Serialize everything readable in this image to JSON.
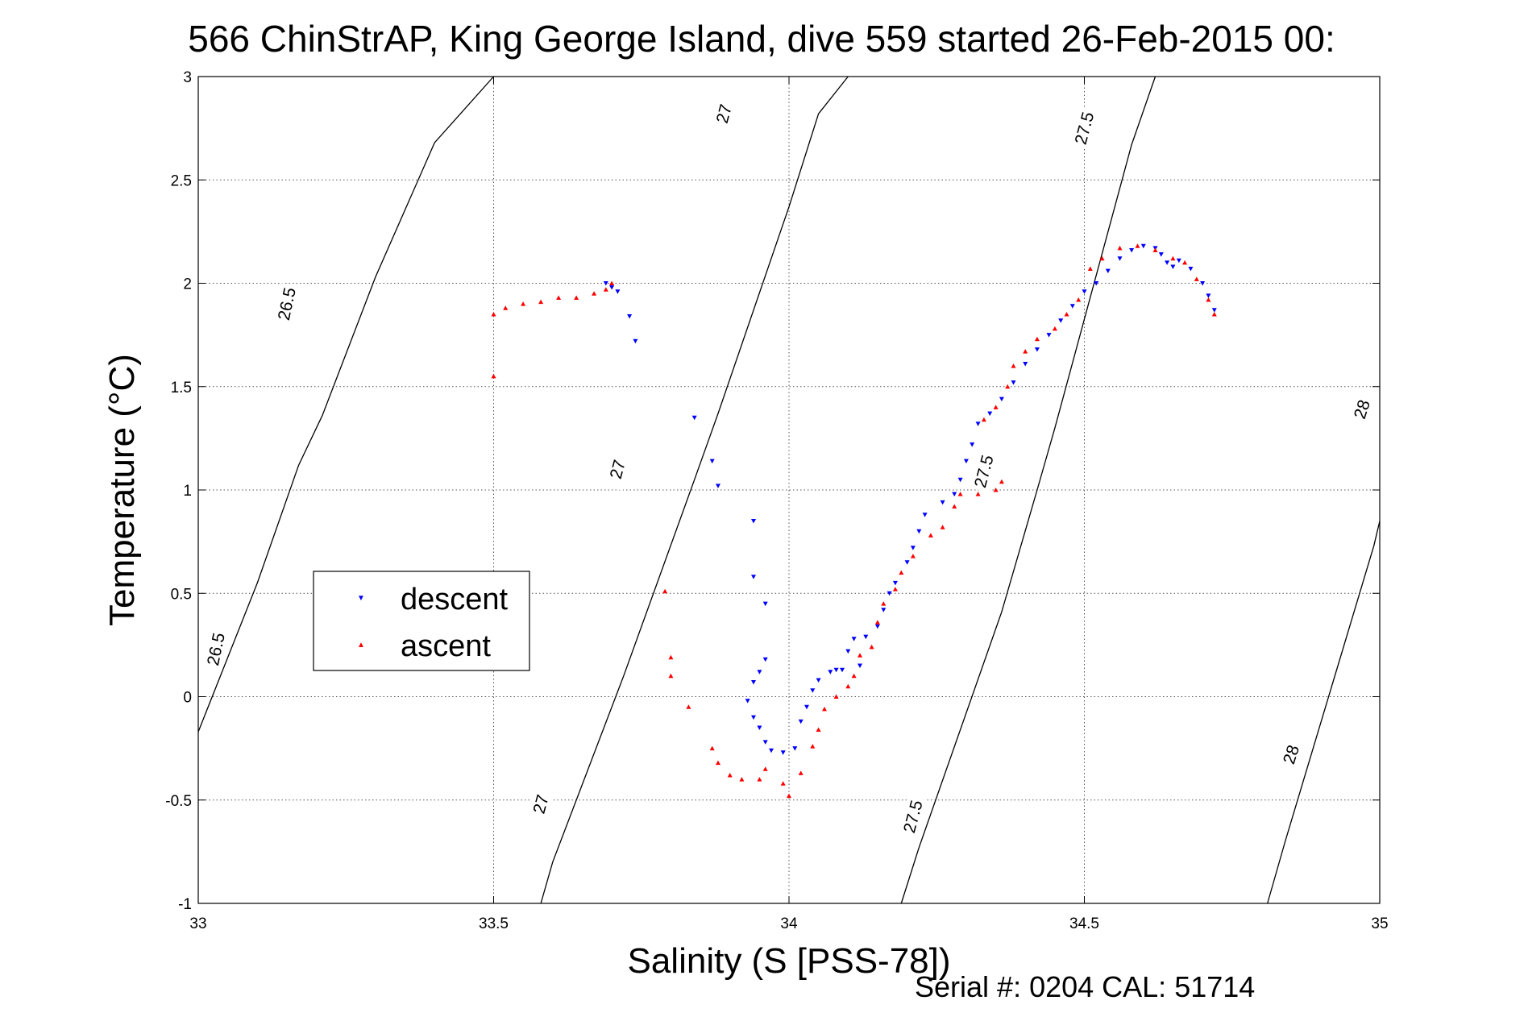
{
  "chart_data": {
    "type": "scatter",
    "title": "566 ChinStrAP, King George Island, dive 559 started 26-Feb-2015 00:",
    "xlabel": "Salinity (S [PSS-78])",
    "ylabel": "Temperature (°C)",
    "xlim": [
      33,
      35
    ],
    "ylim": [
      -1,
      3
    ],
    "x_ticks": [
      33,
      33.5,
      34,
      34.5,
      35
    ],
    "x_tick_labels": [
      "33",
      "33.5",
      "34",
      "34.5",
      "35"
    ],
    "y_ticks": [
      -1,
      -0.5,
      0,
      0.5,
      1,
      1.5,
      2,
      2.5,
      3
    ],
    "y_tick_labels": [
      "-1",
      "-0.5",
      "0",
      "0.5",
      "1",
      "1.5",
      "2",
      "2.5",
      "3"
    ],
    "grid": true,
    "legend_position": "center-left",
    "contours": [
      {
        "label": "26.5",
        "points": [
          [
            33.0,
            -0.17
          ],
          [
            33.1,
            0.55
          ],
          [
            33.17,
            1.12
          ],
          [
            33.21,
            1.36
          ],
          [
            33.3,
            2.03
          ],
          [
            33.4,
            2.68
          ],
          [
            33.5,
            3.0
          ]
        ]
      },
      {
        "label": "27",
        "points": [
          [
            33.58,
            -1.0
          ],
          [
            33.6,
            -0.8
          ],
          [
            33.72,
            0.1
          ],
          [
            33.84,
            1.05
          ],
          [
            33.88,
            1.37
          ],
          [
            34.0,
            2.37
          ],
          [
            34.05,
            2.82
          ],
          [
            34.1,
            3.0
          ]
        ]
      },
      {
        "label": "27.5",
        "points": [
          [
            34.19,
            -1.0
          ],
          [
            34.22,
            -0.73
          ],
          [
            34.36,
            0.41
          ],
          [
            34.42,
            1.0
          ],
          [
            34.45,
            1.3
          ],
          [
            34.58,
            2.67
          ],
          [
            34.62,
            3.0
          ]
        ]
      },
      {
        "label": "28",
        "points": [
          [
            34.81,
            -1.0
          ],
          [
            34.84,
            -0.7
          ],
          [
            34.99,
            0.73
          ],
          [
            35.0,
            0.85
          ]
        ]
      }
    ],
    "contour_labels": [
      {
        "text": "26.5",
        "x": 33.15,
        "y": 1.9,
        "angle": -78
      },
      {
        "text": "26.5",
        "x": 33.03,
        "y": 0.23,
        "angle": -78
      },
      {
        "text": "27",
        "x": 33.89,
        "y": 2.82,
        "angle": -75
      },
      {
        "text": "27",
        "x": 33.71,
        "y": 1.1,
        "angle": -75
      },
      {
        "text": "27",
        "x": 33.58,
        "y": -0.52,
        "angle": -75
      },
      {
        "text": "27.5",
        "x": 34.5,
        "y": 2.75,
        "angle": -75
      },
      {
        "text": "27.5",
        "x": 34.33,
        "y": 1.09,
        "angle": -75
      },
      {
        "text": "27.5",
        "x": 34.21,
        "y": -0.58,
        "angle": -75
      },
      {
        "text": "28",
        "x": 34.97,
        "y": 1.39,
        "angle": -72
      },
      {
        "text": "28",
        "x": 34.85,
        "y": -0.28,
        "angle": -72
      }
    ],
    "series": [
      {
        "name": "descent",
        "color": "#0000ff",
        "marker": "triangle-down",
        "points": [
          [
            33.69,
            2.0
          ],
          [
            33.7,
            1.98
          ],
          [
            33.71,
            1.96
          ],
          [
            33.73,
            1.84
          ],
          [
            33.74,
            1.72
          ],
          [
            33.84,
            1.35
          ],
          [
            33.87,
            1.14
          ],
          [
            33.88,
            1.02
          ],
          [
            33.94,
            0.85
          ],
          [
            33.94,
            0.58
          ],
          [
            33.96,
            0.45
          ],
          [
            33.93,
            -0.02
          ],
          [
            33.94,
            0.07
          ],
          [
            33.95,
            0.12
          ],
          [
            33.96,
            0.18
          ],
          [
            33.94,
            -0.1
          ],
          [
            33.95,
            -0.15
          ],
          [
            33.96,
            -0.22
          ],
          [
            33.97,
            -0.26
          ],
          [
            33.99,
            -0.27
          ],
          [
            34.01,
            -0.25
          ],
          [
            34.02,
            -0.12
          ],
          [
            34.03,
            -0.05
          ],
          [
            34.04,
            0.03
          ],
          [
            34.05,
            0.08
          ],
          [
            34.07,
            0.12
          ],
          [
            34.08,
            0.13
          ],
          [
            34.09,
            0.13
          ],
          [
            34.12,
            0.15
          ],
          [
            34.1,
            0.22
          ],
          [
            34.11,
            0.28
          ],
          [
            34.13,
            0.29
          ],
          [
            34.15,
            0.34
          ],
          [
            34.16,
            0.42
          ],
          [
            34.17,
            0.5
          ],
          [
            34.18,
            0.55
          ],
          [
            34.2,
            0.65
          ],
          [
            34.21,
            0.72
          ],
          [
            34.22,
            0.8
          ],
          [
            34.23,
            0.88
          ],
          [
            34.26,
            0.94
          ],
          [
            34.28,
            0.98
          ],
          [
            34.29,
            1.05
          ],
          [
            34.3,
            1.14
          ],
          [
            34.31,
            1.22
          ],
          [
            34.32,
            1.32
          ],
          [
            34.34,
            1.37
          ],
          [
            34.36,
            1.44
          ],
          [
            34.38,
            1.52
          ],
          [
            34.4,
            1.61
          ],
          [
            34.42,
            1.68
          ],
          [
            34.44,
            1.75
          ],
          [
            34.46,
            1.82
          ],
          [
            34.48,
            1.89
          ],
          [
            34.5,
            1.96
          ],
          [
            34.52,
            2.0
          ],
          [
            34.54,
            2.06
          ],
          [
            34.56,
            2.12
          ],
          [
            34.58,
            2.16
          ],
          [
            34.6,
            2.18
          ],
          [
            34.62,
            2.17
          ],
          [
            34.63,
            2.14
          ],
          [
            34.64,
            2.1
          ],
          [
            34.65,
            2.08
          ],
          [
            34.66,
            2.11
          ],
          [
            34.68,
            2.07
          ],
          [
            34.7,
            2.0
          ],
          [
            34.71,
            1.94
          ],
          [
            34.72,
            1.87
          ]
        ]
      },
      {
        "name": "ascent",
        "color": "#ff0000",
        "marker": "triangle-up",
        "points": [
          [
            33.5,
            1.85
          ],
          [
            33.5,
            1.55
          ],
          [
            33.52,
            1.88
          ],
          [
            33.55,
            1.9
          ],
          [
            33.58,
            1.91
          ],
          [
            33.61,
            1.93
          ],
          [
            33.64,
            1.93
          ],
          [
            33.67,
            1.95
          ],
          [
            33.69,
            1.97
          ],
          [
            33.7,
            2.0
          ],
          [
            33.79,
            0.51
          ],
          [
            33.8,
            0.19
          ],
          [
            33.8,
            0.1
          ],
          [
            33.83,
            -0.05
          ],
          [
            33.87,
            -0.25
          ],
          [
            33.88,
            -0.32
          ],
          [
            33.9,
            -0.38
          ],
          [
            33.92,
            -0.4
          ],
          [
            33.95,
            -0.4
          ],
          [
            33.96,
            -0.35
          ],
          [
            33.99,
            -0.42
          ],
          [
            34.0,
            -0.48
          ],
          [
            34.02,
            -0.37
          ],
          [
            34.04,
            -0.24
          ],
          [
            34.05,
            -0.16
          ],
          [
            34.06,
            -0.06
          ],
          [
            34.08,
            0.0
          ],
          [
            34.1,
            0.05
          ],
          [
            34.11,
            0.1
          ],
          [
            34.12,
            0.2
          ],
          [
            34.14,
            0.24
          ],
          [
            34.15,
            0.36
          ],
          [
            34.16,
            0.45
          ],
          [
            34.18,
            0.52
          ],
          [
            34.19,
            0.6
          ],
          [
            34.21,
            0.68
          ],
          [
            34.24,
            0.78
          ],
          [
            34.26,
            0.82
          ],
          [
            34.28,
            0.92
          ],
          [
            34.29,
            0.98
          ],
          [
            34.32,
            0.98
          ],
          [
            34.35,
            1.0
          ],
          [
            34.36,
            1.04
          ],
          [
            34.33,
            1.34
          ],
          [
            34.35,
            1.4
          ],
          [
            34.37,
            1.5
          ],
          [
            34.38,
            1.6
          ],
          [
            34.4,
            1.67
          ],
          [
            34.42,
            1.73
          ],
          [
            34.45,
            1.78
          ],
          [
            34.47,
            1.85
          ],
          [
            34.49,
            1.92
          ],
          [
            34.51,
            2.07
          ],
          [
            34.53,
            2.12
          ],
          [
            34.56,
            2.17
          ],
          [
            34.59,
            2.18
          ],
          [
            34.62,
            2.16
          ],
          [
            34.65,
            2.12
          ],
          [
            34.67,
            2.1
          ],
          [
            34.69,
            2.02
          ],
          [
            34.71,
            1.92
          ],
          [
            34.72,
            1.85
          ]
        ]
      }
    ],
    "footer": "Serial #: 0204  CAL: 51714"
  }
}
